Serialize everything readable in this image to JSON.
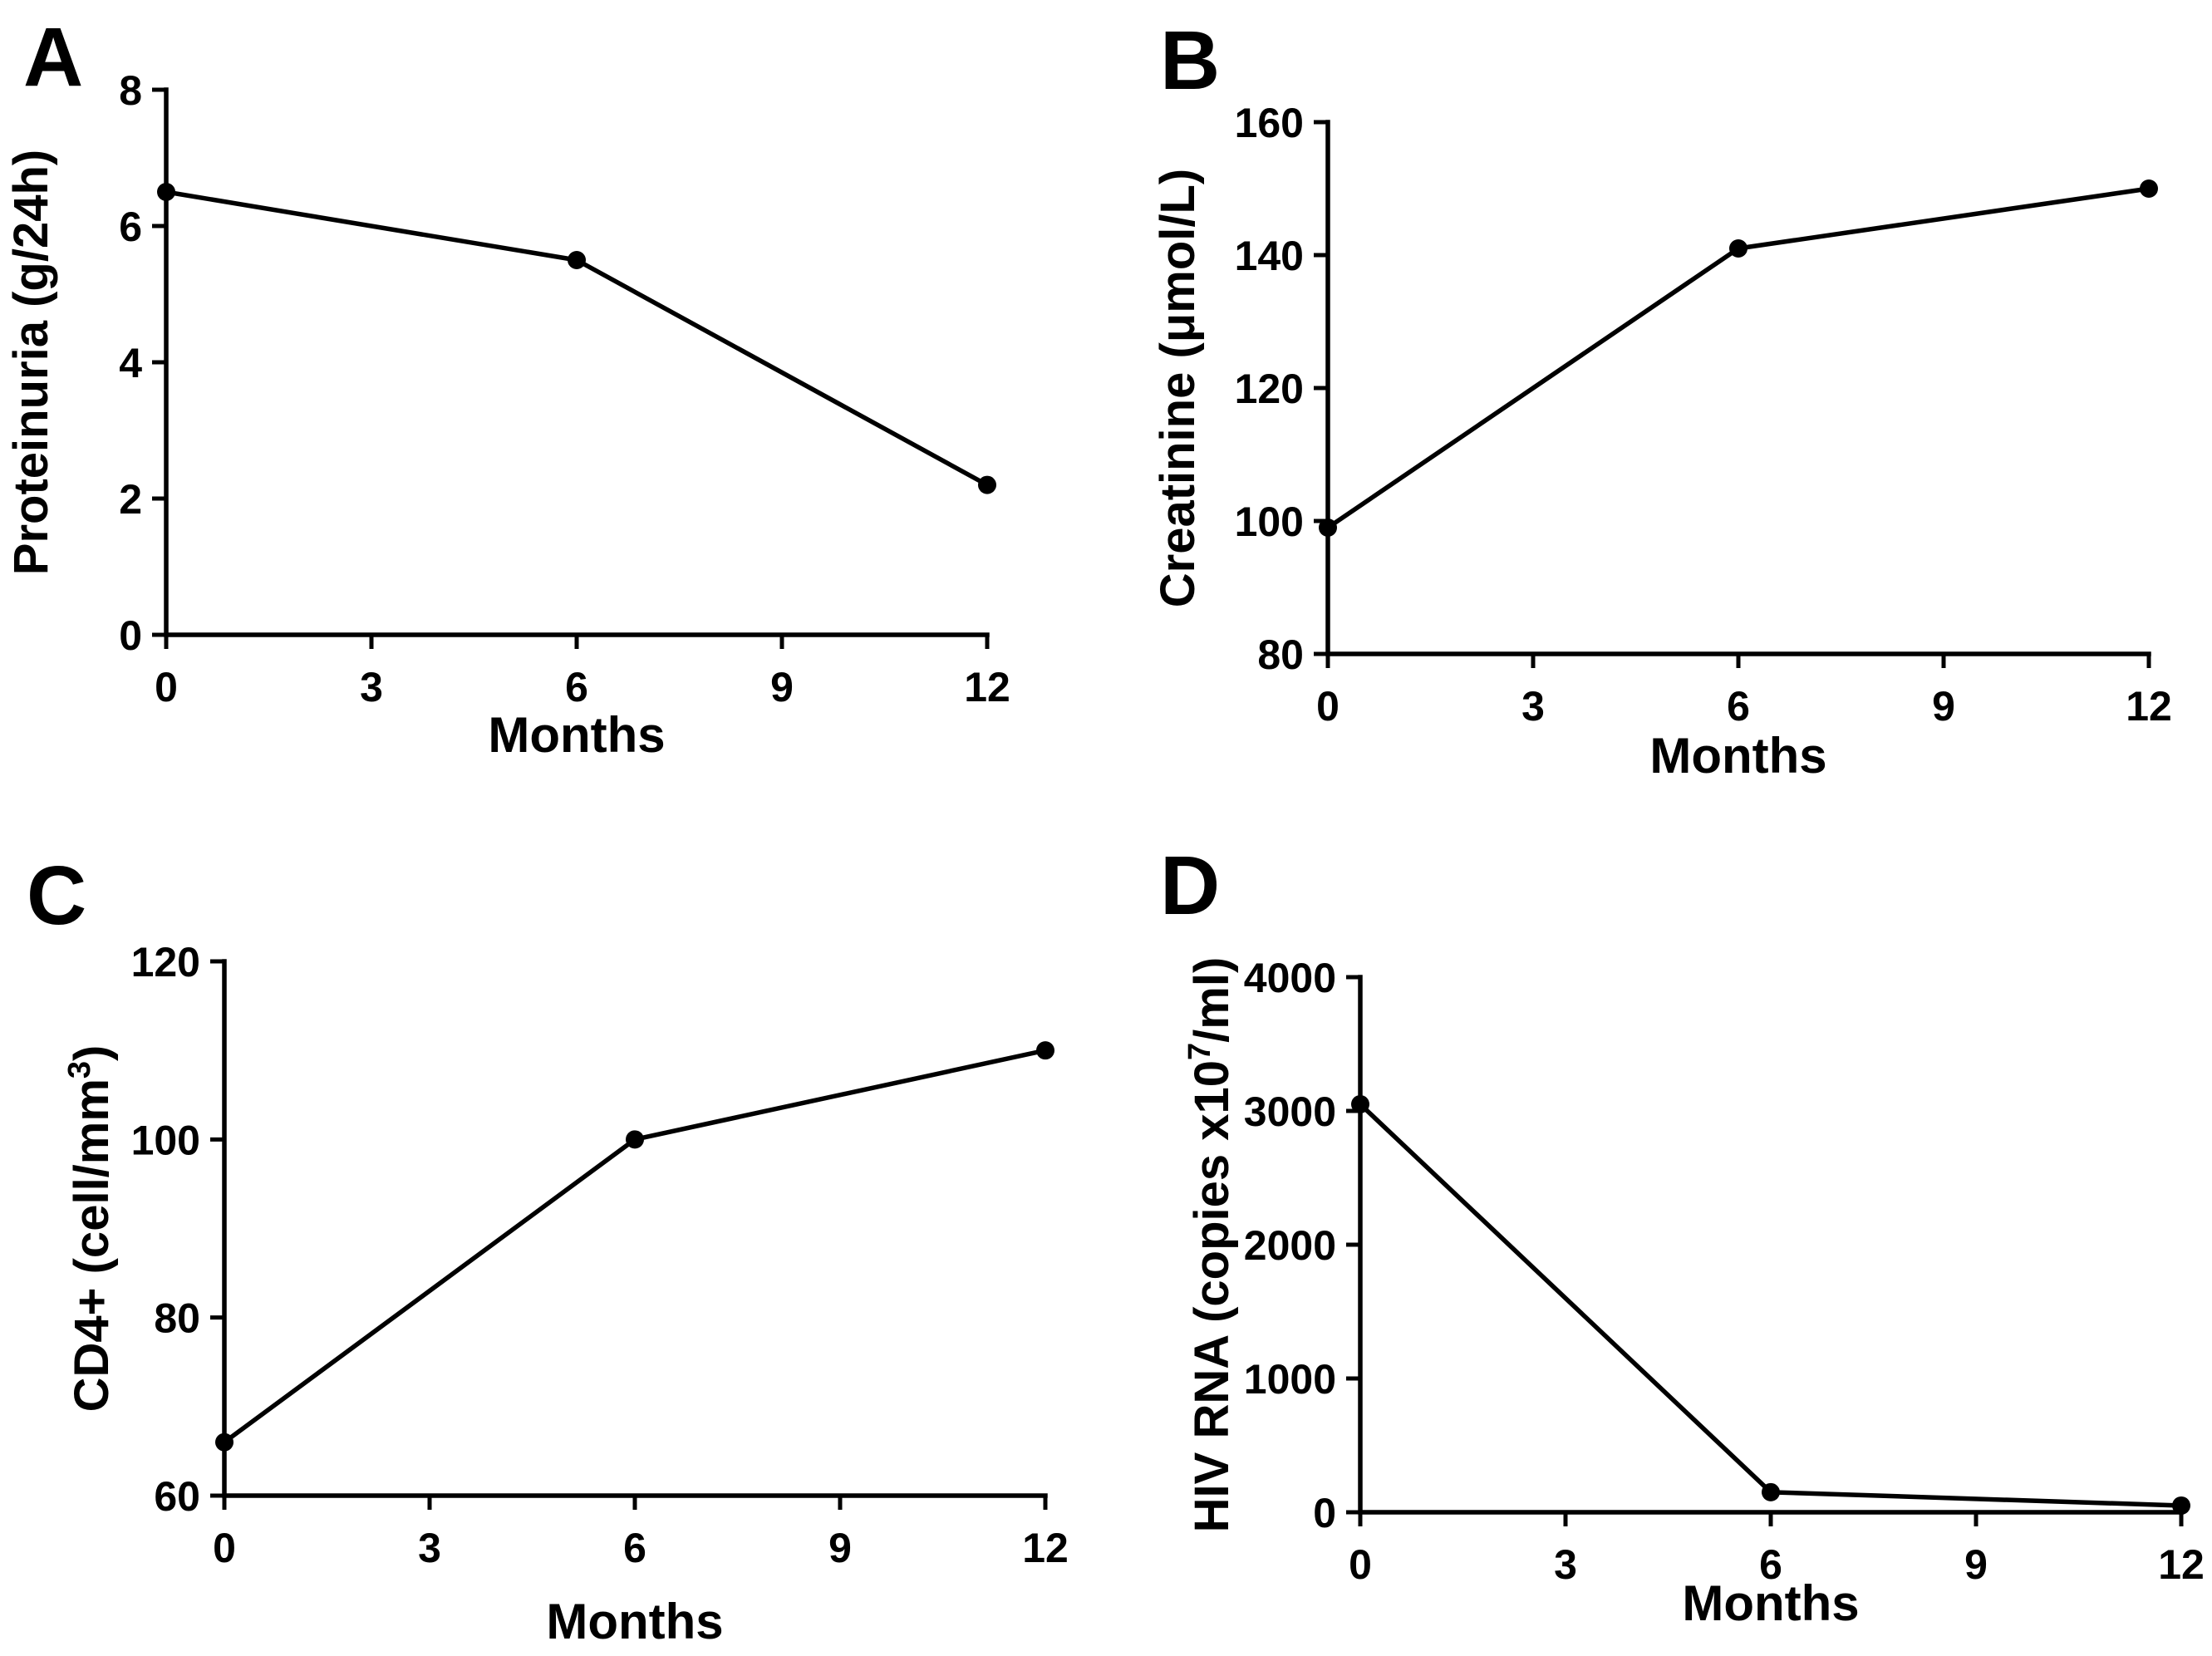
{
  "figure": {
    "background": "#ffffff",
    "ink_color": "#000000",
    "description_panels": [
      "A",
      "B",
      "C",
      "D"
    ]
  },
  "chart_data": [
    {
      "panel": "A",
      "type": "line",
      "x": [
        0,
        6,
        12
      ],
      "values": [
        6.5,
        5.5,
        2.2
      ],
      "series_name": "Proteinuria",
      "xlabel": "Months",
      "ylabel": "Proteinuria (g/24h)",
      "ylabel_parts": [
        {
          "text": "Proteinuria (g/24h)"
        }
      ],
      "xticks": [
        0,
        3,
        6,
        9,
        12
      ],
      "yticks": [
        0,
        2,
        4,
        6,
        8
      ],
      "xlim": [
        0,
        12
      ],
      "ylim": [
        0,
        8
      ],
      "grid": false,
      "legend": "none",
      "marker": "filled-circle",
      "line_color": "#000000"
    },
    {
      "panel": "B",
      "type": "line",
      "x": [
        0,
        6,
        12
      ],
      "values": [
        99,
        141,
        150
      ],
      "series_name": "Creatinine",
      "xlabel": "Months",
      "ylabel": "Creatinine (μmol/L)",
      "ylabel_parts": [
        {
          "text": "Creatinine (μmol/L)"
        }
      ],
      "xticks": [
        0,
        3,
        6,
        9,
        12
      ],
      "yticks": [
        80,
        100,
        120,
        140,
        160
      ],
      "xlim": [
        0,
        12
      ],
      "ylim": [
        80,
        160
      ],
      "grid": false,
      "legend": "none",
      "marker": "filled-circle",
      "line_color": "#000000"
    },
    {
      "panel": "C",
      "type": "line",
      "x": [
        0,
        6,
        12
      ],
      "values": [
        66,
        100,
        110
      ],
      "series_name": "CD4+",
      "xlabel": "Months",
      "ylabel": "CD4+ (cell/mm³)",
      "ylabel_parts": [
        {
          "text": "CD4+ (cell/mm"
        },
        {
          "text": "3",
          "superscript": true
        },
        {
          "text": ")"
        }
      ],
      "xticks": [
        0,
        3,
        6,
        9,
        12
      ],
      "yticks": [
        60,
        80,
        100,
        120
      ],
      "xlim": [
        0,
        12
      ],
      "ylim": [
        60,
        120
      ],
      "grid": false,
      "legend": "none",
      "marker": "filled-circle",
      "line_color": "#000000"
    },
    {
      "panel": "D",
      "type": "line",
      "x": [
        0,
        6,
        12
      ],
      "values": [
        3050,
        150,
        50
      ],
      "series_name": "HIV RNA",
      "xlabel": "Months",
      "ylabel": "HIV RNA (copies x10⁷/ml)",
      "ylabel_parts": [
        {
          "text": "HIV RNA (copies x10"
        },
        {
          "text": "7",
          "superscript": true
        },
        {
          "text": "/ml)"
        }
      ],
      "xticks": [
        0,
        3,
        6,
        9,
        12
      ],
      "yticks": [
        0,
        1000,
        2000,
        3000,
        4000
      ],
      "xlim": [
        0,
        12
      ],
      "ylim": [
        0,
        4000
      ],
      "grid": false,
      "legend": "none",
      "marker": "filled-circle",
      "line_color": "#000000"
    }
  ]
}
